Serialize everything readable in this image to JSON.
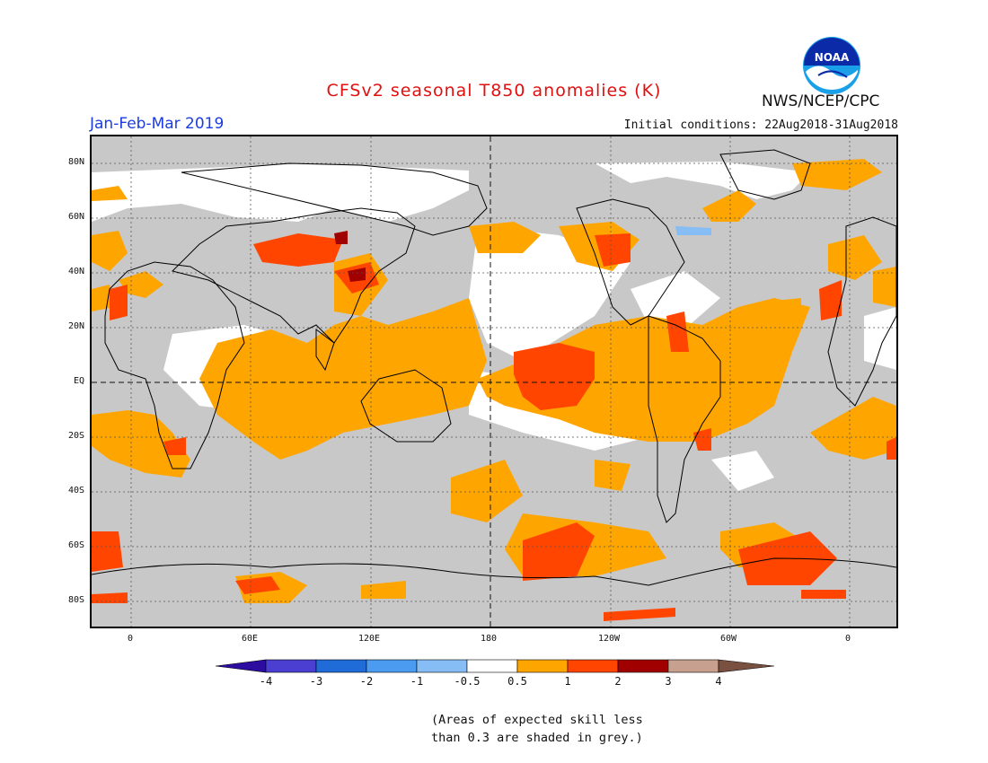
{
  "header": {
    "title": "CFSv2 seasonal T850 anomalies (K)",
    "period": "Jan-Feb-Mar 2019",
    "initial_conditions": "Initial conditions: 22Aug2018-31Aug2018",
    "agency": "NWS/NCEP/CPC",
    "logo_text": "NOAA"
  },
  "map": {
    "latitude_labels": [
      "80N",
      "60N",
      "40N",
      "20N",
      "EQ",
      "20S",
      "40S",
      "60S",
      "80S"
    ],
    "longitude_labels": [
      "0",
      "60E",
      "120E",
      "180",
      "120W",
      "60W",
      "0"
    ],
    "projection_range": {
      "lon_start": -20,
      "lon_end": 380,
      "lat_top": 90,
      "lat_bottom": -90
    },
    "colors": {
      "skill_mask": "#c8c8c8",
      "background": "#ffffff",
      "coast": "#000000"
    }
  },
  "colorbar": {
    "labels": [
      "-4",
      "-3",
      "-2",
      "-1",
      "-0.5",
      "0.5",
      "1",
      "2",
      "3",
      "4"
    ],
    "bins": [
      {
        "color": "#2d0da0",
        "range": "< -4"
      },
      {
        "color": "#4a3fd0",
        "range": "-4 to -3"
      },
      {
        "color": "#1f6cd8",
        "range": "-3 to -2"
      },
      {
        "color": "#4b9cf0",
        "range": "-2 to -1"
      },
      {
        "color": "#86bdf5",
        "range": "-1 to -0.5"
      },
      {
        "color": "#ffffff",
        "range": "-0.5 to 0.5"
      },
      {
        "color": "#ffa500",
        "range": "0.5 to 1"
      },
      {
        "color": "#ff4500",
        "range": "1 to 2"
      },
      {
        "color": "#a00000",
        "range": "2 to 3"
      },
      {
        "color": "#c8a090",
        "range": "3 to 4"
      },
      {
        "color": "#7a5040",
        "range": "> 4"
      }
    ]
  },
  "note": {
    "line1": "(Areas of expected skill less",
    "line2": "than 0.3 are shaded in grey.)"
  }
}
